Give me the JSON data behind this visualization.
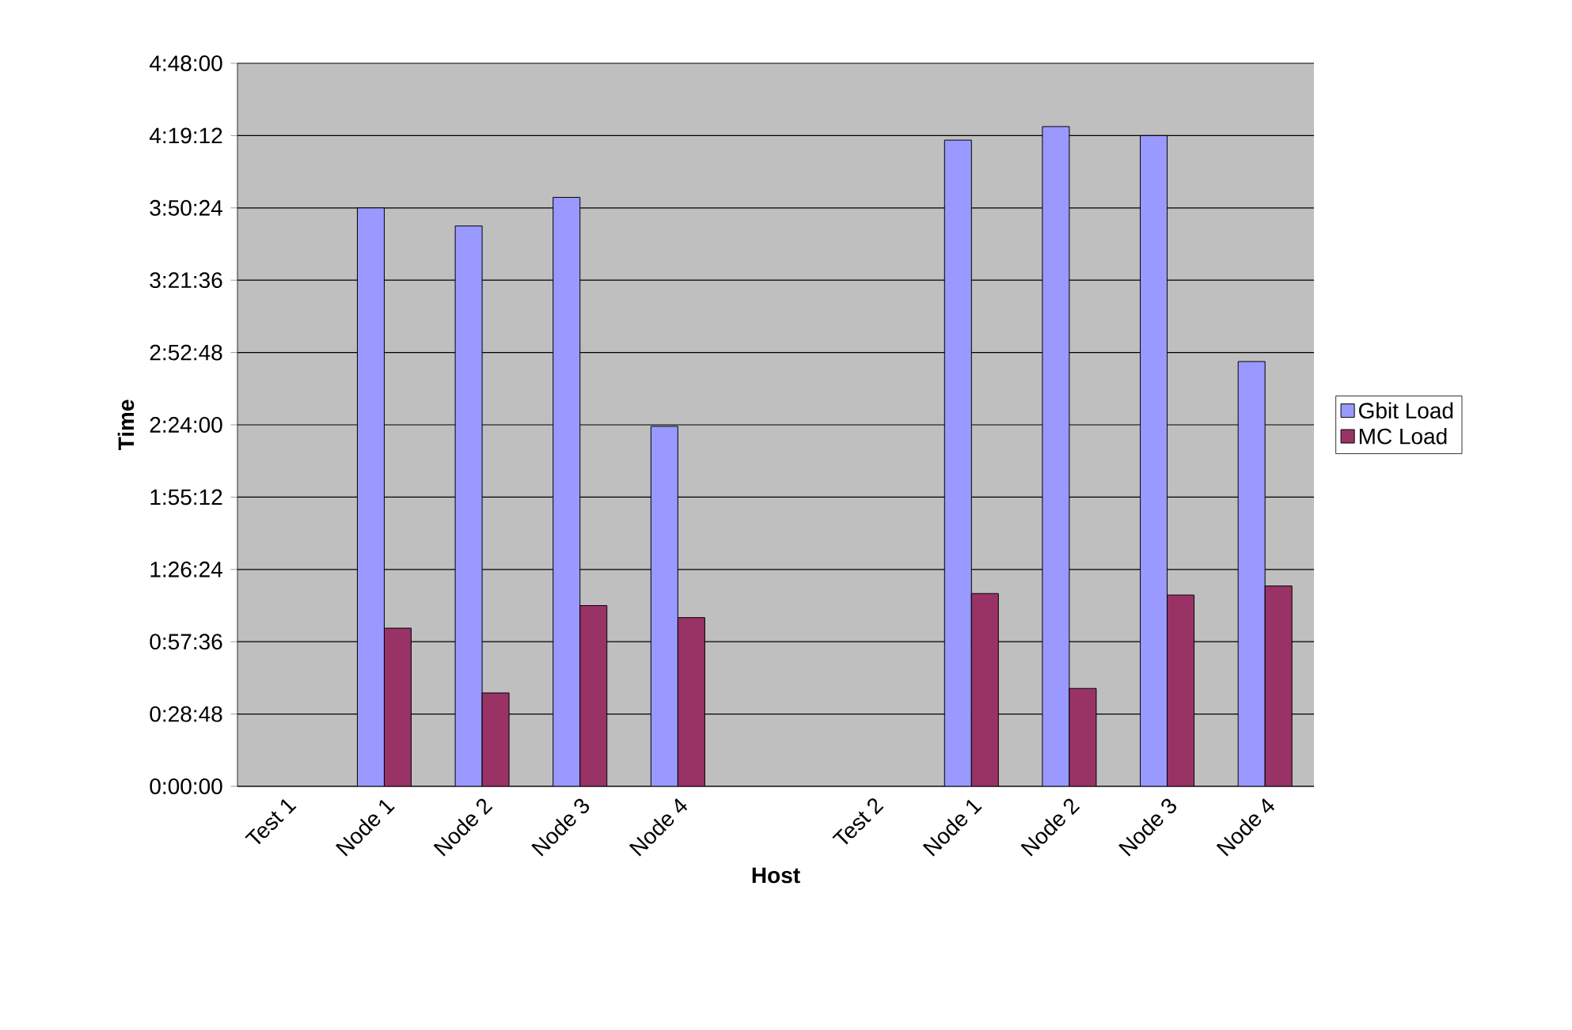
{
  "chart_data": {
    "type": "bar",
    "xlabel": "Host",
    "ylabel": "Time",
    "categories": [
      "Test 1",
      "Node 1",
      "Node 2",
      "Node 3",
      "Node 4",
      null,
      "Test 2",
      "Node 1",
      "Node 2",
      "Node 3",
      "Node 4"
    ],
    "series": [
      {
        "name": "Gbit Load",
        "color": "#9999ff",
        "values": [
          null,
          3.84,
          3.72,
          3.91,
          2.39,
          null,
          null,
          4.29,
          4.38,
          4.32,
          2.82
        ]
      },
      {
        "name": "MC Load",
        "color": "#993366",
        "values": [
          null,
          1.05,
          0.62,
          1.2,
          1.12,
          null,
          null,
          1.28,
          0.65,
          1.27,
          1.33
        ]
      }
    ],
    "ylim": [
      0,
      4.8
    ],
    "yticks": [
      {
        "value": 0,
        "label": "0:00:00"
      },
      {
        "value": 0.48,
        "label": "0:28:48"
      },
      {
        "value": 0.96,
        "label": "0:57:36"
      },
      {
        "value": 1.44,
        "label": "1:26:24"
      },
      {
        "value": 1.92,
        "label": "1:55:12"
      },
      {
        "value": 2.4,
        "label": "2:24:00"
      },
      {
        "value": 2.88,
        "label": "2:52:48"
      },
      {
        "value": 3.36,
        "label": "3:21:36"
      },
      {
        "value": 3.84,
        "label": "3:50:24"
      },
      {
        "value": 4.32,
        "label": "4:19:12"
      },
      {
        "value": 4.8,
        "label": "4:48:00"
      }
    ],
    "grid": "y",
    "legend": "right"
  }
}
